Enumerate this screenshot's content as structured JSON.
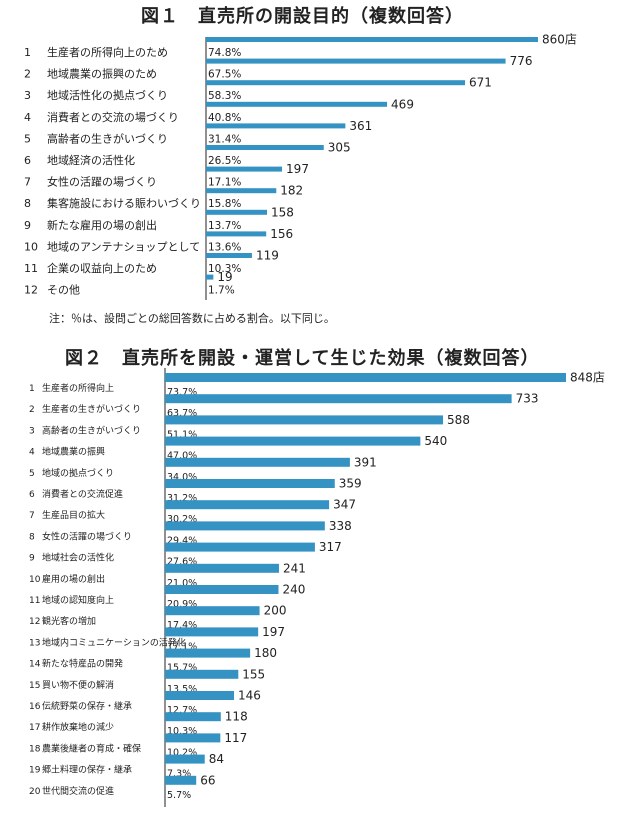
{
  "chart_data": [
    {
      "type": "bar",
      "orientation": "horizontal",
      "title": "図１　直売所の開設目的（複数回答）",
      "unit_suffix": "店",
      "categories": [
        "生産者の所得向上のため",
        "地域農業の振興のため",
        "地域活性化の拠点づくり",
        "消費者との交流の場づくり",
        "高齢者の生きがいづくり",
        "地域経済の活性化",
        "女性の活躍の場づくり",
        "集客施設における賑わいづくり",
        "新たな雇用の場の創出",
        "地域のアンテナショップとして",
        "企業の収益向上のため",
        "その他"
      ],
      "values": [
        860,
        776,
        671,
        469,
        361,
        305,
        197,
        182,
        158,
        156,
        119,
        19
      ],
      "percent_labels": [
        "74.8%",
        "67.5%",
        "58.3%",
        "40.8%",
        "31.4%",
        "26.5%",
        "17.1%",
        "15.8%",
        "13.7%",
        "13.6%",
        "10.3%",
        "1.7%"
      ],
      "xlim": [
        0,
        860
      ],
      "note": "注：％は、設問ごとの総回答数に占める割合。以下同じ。"
    },
    {
      "type": "bar",
      "orientation": "horizontal",
      "title": "図２　直売所を開設・運営して生じた効果（複数回答）",
      "unit_suffix": "店",
      "categories": [
        "生産者の所得向上",
        "生産者の生きがいづくり",
        "高齢者の生きがいづくり",
        "地域農業の振興",
        "地域の拠点づくり",
        "消費者との交流促進",
        "生産品目の拡大",
        "女性の活躍の場づくり",
        "地域社会の活性化",
        "雇用の場の創出",
        "地域の認知度向上",
        "観光客の増加",
        "地域内コミュニケーションの活発化",
        "新たな特産品の開発",
        "買い物不便の解消",
        "伝統野菜の保存・継承",
        "耕作放棄地の減少",
        "農業後継者の育成・確保",
        "郷土料理の保存・継承",
        "世代間交流の促進"
      ],
      "values": [
        848,
        733,
        588,
        540,
        391,
        359,
        347,
        338,
        317,
        241,
        240,
        200,
        197,
        180,
        155,
        146,
        118,
        117,
        84,
        66
      ],
      "percent_labels": [
        "73.7%",
        "63.7%",
        "51.1%",
        "47.0%",
        "34.0%",
        "31.2%",
        "30.2%",
        "29.4%",
        "27.6%",
        "21.0%",
        "20.9%",
        "17.4%",
        "17.1%",
        "15.7%",
        "13.5%",
        "12.7%",
        "10.3%",
        "10.2%",
        "7.3%",
        "5.7%"
      ],
      "xlim": [
        0,
        848
      ]
    }
  ]
}
